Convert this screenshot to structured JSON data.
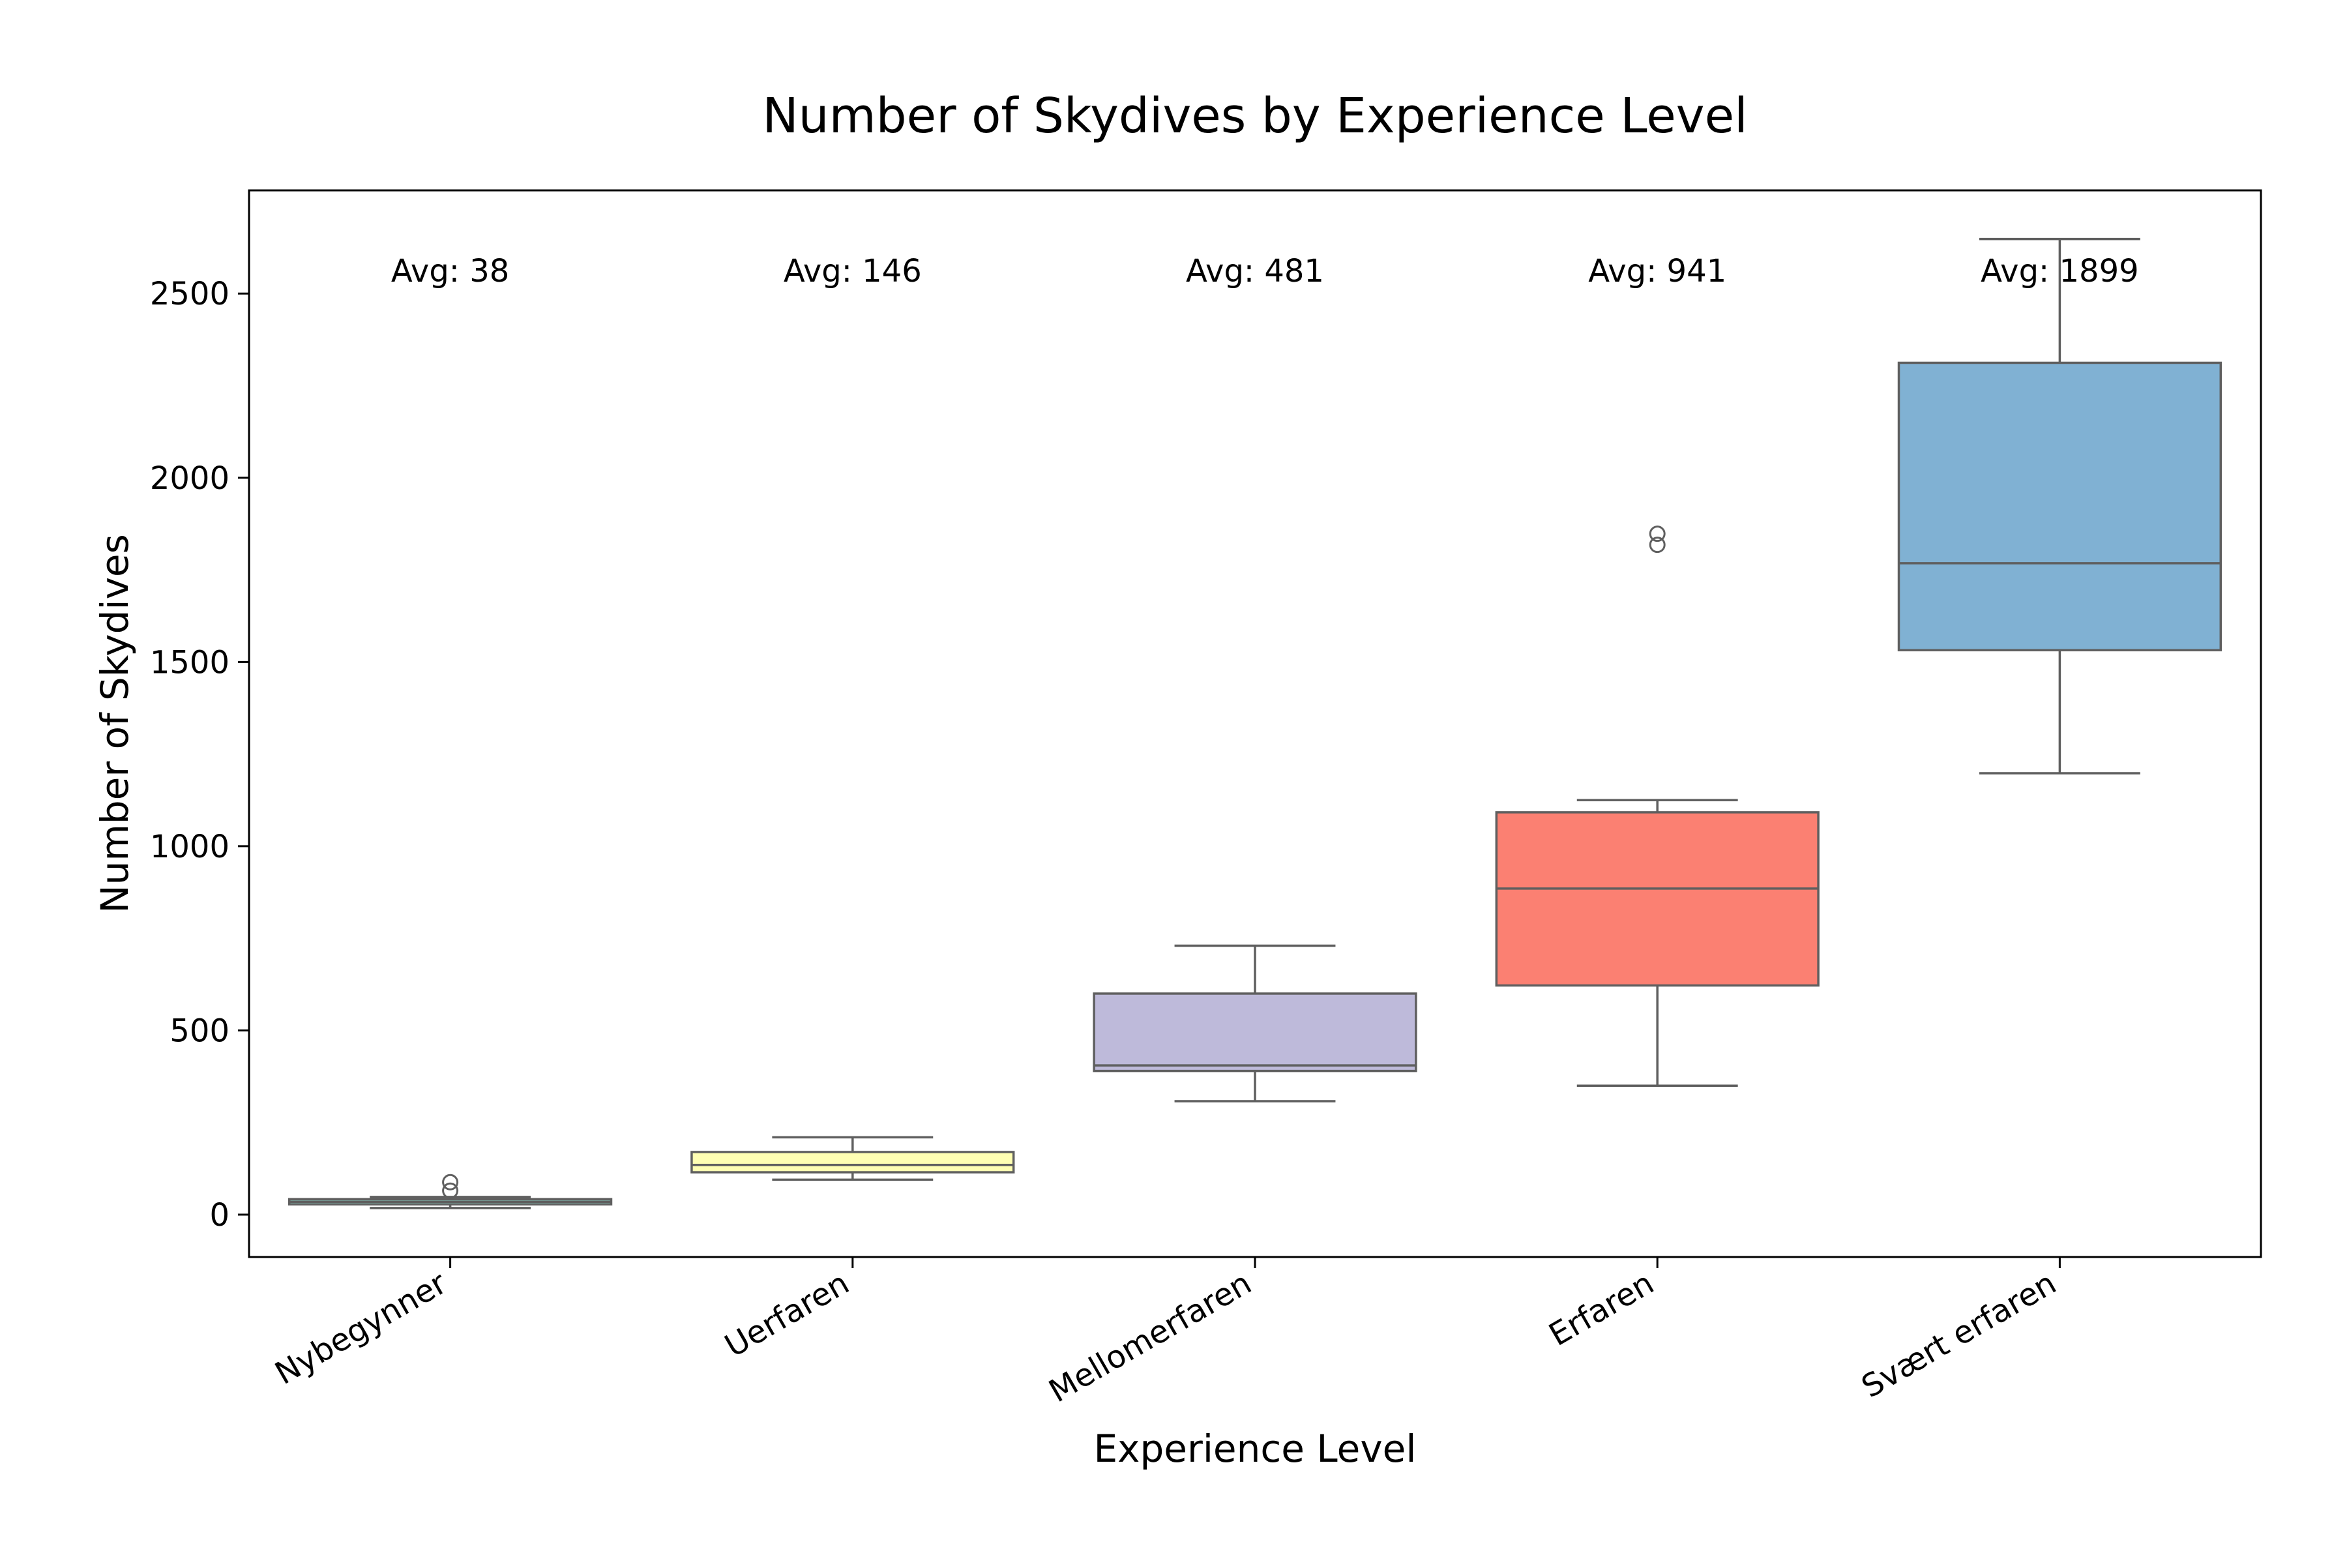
{
  "chart_data": {
    "type": "box",
    "title": "Number of Skydives by Experience Level",
    "xlabel": "Experience Level",
    "ylabel": "Number of Skydives",
    "ylim": [
      -115,
      2780
    ],
    "yticks": [
      0,
      500,
      1000,
      1500,
      2000,
      2500
    ],
    "grid": false,
    "legend": "none",
    "categories": [
      "Nybegynner",
      "Uerfaren",
      "Mellomerfaren",
      "Erfaren",
      "Svært erfaren"
    ],
    "series": [
      {
        "name": "Nybegynner",
        "color": "#8dd3c7",
        "whisker_low": 18,
        "q1": 28,
        "median": 35,
        "q3": 42,
        "whisker_high": 48,
        "outliers": [
          65,
          88
        ],
        "avg_label": "Avg: 38"
      },
      {
        "name": "Uerfaren",
        "color": "#ffffb3",
        "whisker_low": 95,
        "q1": 115,
        "median": 135,
        "q3": 170,
        "whisker_high": 210,
        "outliers": [],
        "avg_label": "Avg: 146"
      },
      {
        "name": "Mellomerfaren",
        "color": "#bebada",
        "whisker_low": 308,
        "q1": 390,
        "median": 405,
        "q3": 600,
        "whisker_high": 730,
        "outliers": [],
        "avg_label": "Avg: 481"
      },
      {
        "name": "Erfaren",
        "color": "#fb8072",
        "whisker_low": 350,
        "q1": 622,
        "median": 885,
        "q3": 1092,
        "whisker_high": 1125,
        "outliers": [
          1818,
          1848
        ],
        "avg_label": "Avg: 941"
      },
      {
        "name": "Svært erfaren",
        "color": "#80b1d3",
        "whisker_low": 1198,
        "q1": 1532,
        "median": 1768,
        "q3": 2312,
        "whisker_high": 2648,
        "outliers": [],
        "avg_label": "Avg: 1899"
      }
    ]
  }
}
